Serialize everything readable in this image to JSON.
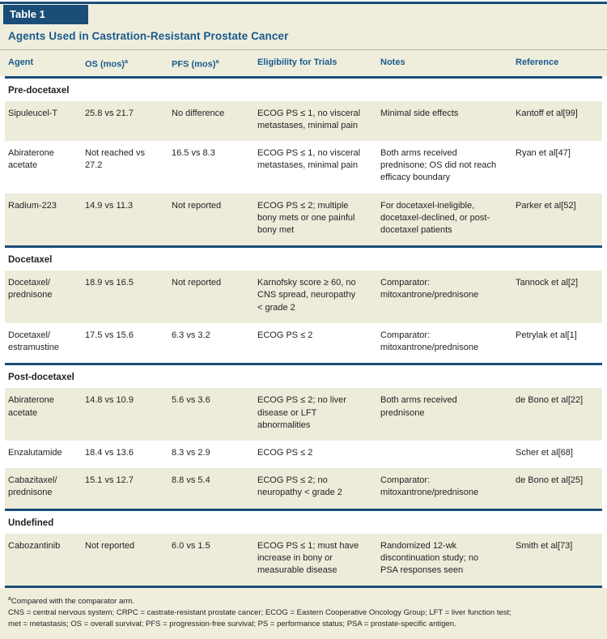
{
  "theme": {
    "navy": "#1a4e78",
    "header_text_blue": "#1a5a8c",
    "cream_band": "#efeedd",
    "row_shade": "#edecdb",
    "text_black": "#231f20"
  },
  "header": {
    "table_label": "Table 1",
    "title": "Agents Used in Castration-Resistant Prostate Cancer"
  },
  "columns": [
    {
      "label": "Agent"
    },
    {
      "label": "OS (mos)",
      "sup": "a"
    },
    {
      "label": "PFS (mos)",
      "sup": "a"
    },
    {
      "label": "Eligibility for Trials"
    },
    {
      "label": "Notes"
    },
    {
      "label": "Reference"
    }
  ],
  "sections": [
    {
      "label": "Pre-docetaxel",
      "rows": [
        {
          "agent": "Sipuleucel-T",
          "os": "25.8 vs 21.7",
          "pfs": "No difference",
          "eligibility": "ECOG PS ≤ 1, no visceral metastases, minimal pain",
          "notes": "Minimal side effects",
          "reference": "Kantoff et al[99]"
        },
        {
          "agent": "Abiraterone acetate",
          "os": "Not reached vs 27.2",
          "pfs": "16.5 vs 8.3",
          "eligibility": "ECOG PS ≤ 1, no visceral metastases, minimal pain",
          "notes": "Both arms received prednisone; OS did not reach efficacy boundary",
          "reference": "Ryan et al[47]"
        },
        {
          "agent": "Radium-223",
          "os": "14.9 vs 11.3",
          "pfs": "Not reported",
          "eligibility": "ECOG PS ≤ 2; multiple bony mets or one painful bony met",
          "notes": "For docetaxel-ineligible, docetaxel-declined, or post-docetaxel patients",
          "reference": "Parker et al[52]"
        }
      ]
    },
    {
      "label": "Docetaxel",
      "rows": [
        {
          "agent": "Docetaxel/prednisone",
          "os": "18.9 vs 16.5",
          "pfs": "Not reported",
          "eligibility": "Karnofsky score ≥ 60, no CNS spread, neuropathy < grade 2",
          "notes": "Comparator: mitoxantrone/prednisone",
          "reference": "Tannock et al[2]"
        },
        {
          "agent": "Docetaxel/estramustine",
          "os": "17.5 vs 15.6",
          "pfs": "6.3 vs 3.2",
          "eligibility": "ECOG PS ≤ 2",
          "notes": "Comparator: mitoxantrone/prednisone",
          "reference": "Petrylak et al[1]"
        }
      ]
    },
    {
      "label": "Post-docetaxel",
      "rows": [
        {
          "agent": "Abiraterone acetate",
          "os": "14.8 vs 10.9",
          "pfs": "5.6 vs 3.6",
          "eligibility": "ECOG PS ≤ 2; no liver disease or LFT abnormalities",
          "notes": "Both arms received prednisone",
          "reference": "de Bono et al[22]"
        },
        {
          "agent": "Enzalutamide",
          "os": "18.4 vs 13.6",
          "pfs": "8.3 vs 2.9",
          "eligibility": "ECOG PS ≤ 2",
          "notes": "",
          "reference": "Scher et al[68]"
        },
        {
          "agent": "Cabazitaxel/prednisone",
          "os": "15.1 vs 12.7",
          "pfs": "8.8 vs 5.4",
          "eligibility": "ECOG PS ≤ 2; no neuropathy < grade 2",
          "notes": "Comparator: mitoxantrone/prednisone",
          "reference": "de Bono et al[25]"
        }
      ]
    },
    {
      "label": "Undefined",
      "rows": [
        {
          "agent": "Cabozantinib",
          "os": "Not reported",
          "pfs": "6.0 vs 1.5",
          "eligibility": "ECOG PS ≤ 1; must have increase in bony or measurable disease",
          "notes": "Randomized 12-wk discontinuation study; no PSA responses seen",
          "reference": "Smith et al[73]"
        }
      ]
    }
  ],
  "footnotes": {
    "marker": "a",
    "compare": "Compared with the comparator arm.",
    "abbrev1": "CNS = central nervous system; CRPC = castrate-resistant prostate cancer; ECOG = Eastern Cooperative Oncology Group; LFT = liver function test;",
    "abbrev2": "met = metastasis; OS = overall survival; PFS = progression-free survival; PS = performance status; PSA = prostate-specific antigen."
  }
}
